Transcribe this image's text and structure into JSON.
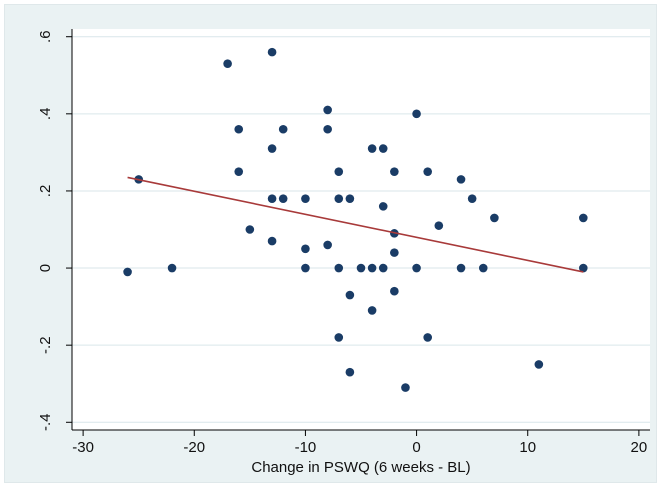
{
  "chart_data": {
    "type": "scatter",
    "title": "",
    "xlabel": "Change in PSWQ (6 weeks  - BL)",
    "ylabel": "",
    "xlim": [
      -31,
      21
    ],
    "ylim": [
      -0.42,
      0.62
    ],
    "xticks": [
      -30,
      -20,
      -10,
      0,
      10,
      20
    ],
    "xtick_labels": [
      "-30",
      "-20",
      "-10",
      "0",
      "10",
      "20"
    ],
    "yticks": [
      -0.4,
      -0.2,
      0,
      0.2,
      0.4,
      0.6
    ],
    "ytick_labels": [
      "-.4",
      "-.2",
      "0",
      ".2",
      ".4",
      ".6"
    ],
    "grid": "horizontal",
    "legend": "none",
    "colors": {
      "points": "#1a3c66",
      "fit_line": "#a83a3a",
      "plot_bg": "#ffffff",
      "outer_bg": "#eaf2f3",
      "grid": "#d9e6ea"
    },
    "points": [
      {
        "x": -26,
        "y": -0.01
      },
      {
        "x": -25,
        "y": 0.23
      },
      {
        "x": -22,
        "y": 0.0
      },
      {
        "x": -17,
        "y": 0.53
      },
      {
        "x": -16,
        "y": 0.36
      },
      {
        "x": -16,
        "y": 0.25
      },
      {
        "x": -15,
        "y": 0.1
      },
      {
        "x": -13,
        "y": 0.56
      },
      {
        "x": -13,
        "y": 0.31
      },
      {
        "x": -13,
        "y": 0.18
      },
      {
        "x": -13,
        "y": 0.07
      },
      {
        "x": -12,
        "y": 0.36
      },
      {
        "x": -12,
        "y": 0.18
      },
      {
        "x": -10,
        "y": 0.18
      },
      {
        "x": -10,
        "y": 0.05
      },
      {
        "x": -10,
        "y": 0.0
      },
      {
        "x": -8,
        "y": 0.41
      },
      {
        "x": -8,
        "y": 0.36
      },
      {
        "x": -8,
        "y": 0.06
      },
      {
        "x": -7,
        "y": 0.25
      },
      {
        "x": -7,
        "y": 0.18
      },
      {
        "x": -7,
        "y": 0.0
      },
      {
        "x": -7,
        "y": -0.18
      },
      {
        "x": -6,
        "y": 0.18
      },
      {
        "x": -6,
        "y": -0.07
      },
      {
        "x": -6,
        "y": -0.27
      },
      {
        "x": -5,
        "y": 0.0
      },
      {
        "x": -4,
        "y": 0.31
      },
      {
        "x": -4,
        "y": 0.0
      },
      {
        "x": -4,
        "y": -0.11
      },
      {
        "x": -3,
        "y": 0.31
      },
      {
        "x": -3,
        "y": 0.16
      },
      {
        "x": -3,
        "y": 0.0
      },
      {
        "x": -2,
        "y": 0.25
      },
      {
        "x": -2,
        "y": 0.09
      },
      {
        "x": -2,
        "y": 0.04
      },
      {
        "x": -2,
        "y": -0.06
      },
      {
        "x": -1,
        "y": -0.31
      },
      {
        "x": 0,
        "y": 0.4
      },
      {
        "x": 0,
        "y": 0.0
      },
      {
        "x": 1,
        "y": 0.25
      },
      {
        "x": 1,
        "y": -0.18
      },
      {
        "x": 2,
        "y": 0.11
      },
      {
        "x": 4,
        "y": 0.23
      },
      {
        "x": 4,
        "y": 0.0
      },
      {
        "x": 5,
        "y": 0.18
      },
      {
        "x": 6,
        "y": 0.0
      },
      {
        "x": 7,
        "y": 0.13
      },
      {
        "x": 11,
        "y": -0.25
      },
      {
        "x": 15,
        "y": 0.13
      },
      {
        "x": 15,
        "y": 0.0
      }
    ],
    "fit_line": {
      "x": [
        -26,
        15
      ],
      "y": [
        0.235,
        -0.01
      ]
    }
  }
}
